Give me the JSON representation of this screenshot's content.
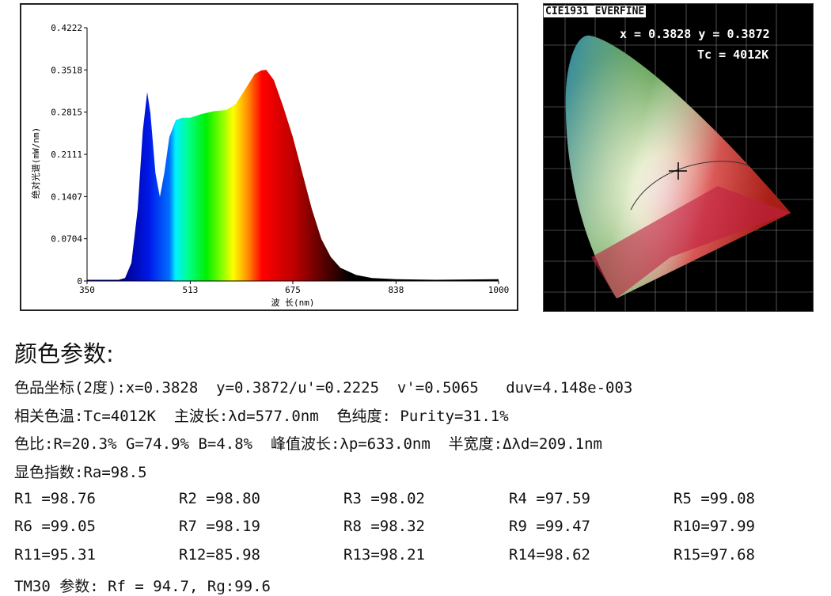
{
  "spectrum_chart": {
    "ylabel": "绝对光谱(mW/nm)",
    "xlabel": "波 长(nm)",
    "yticks": [
      "0",
      "0.0704",
      "0.1407",
      "0.2111",
      "0.2815",
      "0.3518",
      "0.4222"
    ],
    "xticks": [
      "350",
      "513",
      "675",
      "838",
      "1000"
    ]
  },
  "chart_data": {
    "type": "area",
    "xlabel": "波 长(nm)",
    "ylabel": "绝对光谱(mW/nm)",
    "xlim": [
      350,
      1000
    ],
    "ylim": [
      0,
      0.4222
    ],
    "grid": false,
    "x": [
      350,
      400,
      410,
      420,
      430,
      438,
      445,
      450,
      458,
      465,
      472,
      480,
      490,
      500,
      513,
      530,
      550,
      570,
      585,
      600,
      615,
      625,
      633,
      645,
      660,
      675,
      690,
      705,
      720,
      735,
      750,
      775,
      800,
      838,
      900,
      1000
    ],
    "y": [
      0.002,
      0.002,
      0.005,
      0.03,
      0.12,
      0.25,
      0.315,
      0.28,
      0.18,
      0.14,
      0.18,
      0.24,
      0.268,
      0.272,
      0.272,
      0.278,
      0.283,
      0.285,
      0.295,
      0.32,
      0.345,
      0.351,
      0.352,
      0.335,
      0.29,
      0.24,
      0.18,
      0.12,
      0.07,
      0.04,
      0.022,
      0.01,
      0.005,
      0.003,
      0.002,
      0.003
    ]
  },
  "cie": {
    "label": "CIE1931 EVERFINE",
    "coords": "x = 0.3828 y = 0.3872",
    "tc": "Tc = 4012K"
  },
  "params": {
    "title": "颜色参数:",
    "line1": "色品坐标(2度):x=0.3828  y=0.3872/u'=0.2225  v'=0.5065   duv=4.148e-003",
    "line2": "相关色温:Tc=4012K  主波长:λd=577.0nm  色纯度: Purity=31.1%",
    "line3": "色比:R=20.3% G=74.9% B=4.8%  峰值波长:λp=633.0nm  半宽度:Δλd=209.1nm",
    "line4": "显色指数:Ra=98.5",
    "r_values": [
      [
        "R1 =98.76",
        "R2 =98.80",
        "R3 =98.02",
        "R4 =97.59",
        "R5 =99.08"
      ],
      [
        "R6 =99.05",
        "R7 =98.19",
        "R8 =98.32",
        "R9 =99.47",
        "R10=97.99"
      ],
      [
        "R11=95.31",
        "R12=85.98",
        "R13=98.21",
        "R14=98.62",
        "R15=97.68"
      ]
    ],
    "tm30": "TM30 参数: Rf = 94.7, Rg:99.6"
  }
}
